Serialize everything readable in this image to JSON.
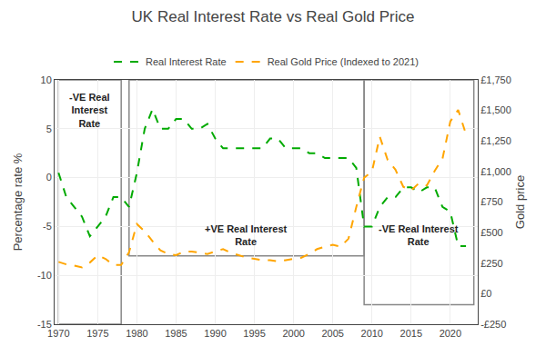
{
  "chart_data": {
    "type": "line",
    "title": "UK Real Interest Rate vs Real Gold Price",
    "y_label": "Percentage rate %",
    "y2_label": "Gold price",
    "x": [
      1970,
      1971,
      1972,
      1973,
      1974,
      1975,
      1976,
      1977,
      1978,
      1979,
      1980,
      1981,
      1982,
      1983,
      1984,
      1985,
      1986,
      1987,
      1988,
      1989,
      1990,
      1991,
      1992,
      1993,
      1994,
      1995,
      1996,
      1997,
      1998,
      1999,
      2000,
      2001,
      2002,
      2003,
      2004,
      2005,
      2006,
      2007,
      2008,
      2009,
      2010,
      2011,
      2012,
      2013,
      2014,
      2015,
      2016,
      2017,
      2018,
      2019,
      2020,
      2021,
      2022
    ],
    "series": [
      {
        "name": "Real Interest Rate",
        "color": "#00aa00",
        "line_style": "dashed",
        "values": [
          0.5,
          -2,
          -3,
          -4,
          -6,
          -5,
          -4,
          -2,
          -2,
          -3,
          0.5,
          5,
          7,
          5,
          5,
          6,
          6,
          5,
          5,
          5.5,
          4,
          3,
          3,
          3,
          3,
          3,
          3,
          4,
          4,
          3,
          3,
          3,
          2.5,
          2.5,
          2,
          2,
          2,
          2,
          1,
          -5,
          -5,
          -3,
          -2,
          -2,
          -1,
          -1,
          -1.5,
          -1,
          -1,
          -3,
          -3.5,
          -7,
          -7
        ]
      },
      {
        "name": "Real Gold Price (Indexed to 2021)",
        "color": "#FFA500",
        "line_style": "dashed",
        "axis": "y2",
        "values": [
          260,
          240,
          230,
          215,
          255,
          315,
          285,
          235,
          235,
          340,
          570,
          510,
          430,
          355,
          325,
          315,
          345,
          345,
          335,
          325,
          345,
          365,
          335,
          315,
          295,
          285,
          275,
          275,
          265,
          275,
          285,
          295,
          325,
          365,
          385,
          400,
          385,
          450,
          710,
          950,
          1000,
          1285,
          1095,
          1015,
          875,
          845,
          905,
          885,
          1005,
          1105,
          1410,
          1505,
          1305
        ]
      }
    ],
    "xlim": [
      1969.5,
      2023.5
    ],
    "xticks": [
      1970,
      1975,
      1980,
      1985,
      1990,
      1995,
      2000,
      2005,
      2010,
      2015,
      2020
    ],
    "ylim": [
      -15,
      10
    ],
    "yticks": [
      -15,
      -10,
      -5,
      0,
      5,
      10
    ],
    "y2lim": [
      -250,
      1750
    ],
    "y2ticks": [
      {
        "value": -250,
        "label": "-£250"
      },
      {
        "value": 0,
        "label": "£0"
      },
      {
        "value": 250,
        "label": "£250"
      },
      {
        "value": 500,
        "label": "£500"
      },
      {
        "value": 750,
        "label": "£750"
      },
      {
        "value": 1000,
        "label": "£1,000"
      },
      {
        "value": 1250,
        "label": "£1,250"
      },
      {
        "value": 1500,
        "label": "£1,500"
      },
      {
        "value": 1750,
        "label": "£1,750"
      }
    ],
    "boxes": [
      {
        "x0": 1970,
        "x1": 1978,
        "y0": -15,
        "y1": 10,
        "label": "-VE Real\nInterest\nRate",
        "label_x": 1974,
        "label_y": 9
      },
      {
        "x0": 1979,
        "x1": 2009,
        "y0": -8,
        "y1": 10,
        "label": "+VE Real Interest\nRate",
        "label_x": 1994,
        "label_y": -4.5
      },
      {
        "x0": 2009,
        "x1": 2023,
        "y0": -13,
        "y1": 10,
        "label": "-VE Real Interest\nRate",
        "label_x": 2016,
        "label_y": -4.5
      }
    ],
    "grid": true,
    "legend": "top"
  }
}
